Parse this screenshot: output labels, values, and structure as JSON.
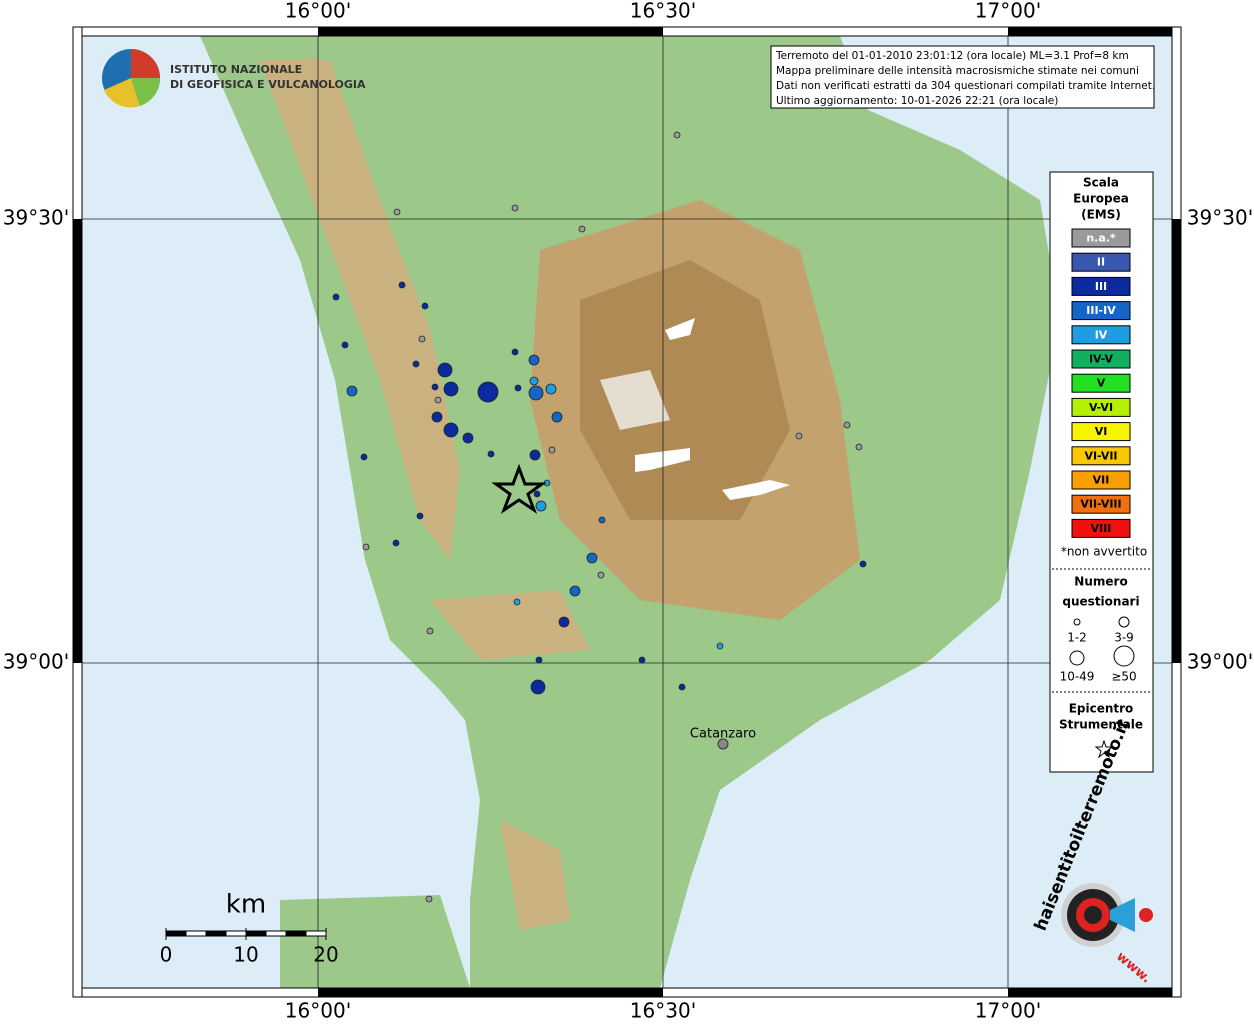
{
  "info": [
    "Terremoto del 01-01-2010 23:01:12 (ora locale) ML=3.1 Prof=8 km",
    "Mappa preliminare delle intensità macrosismiche stimate nei comuni",
    "Dati non verificati estratti da 304 questionari compilati tramite Internet.",
    "Ultimo aggiornamento: 10-01-2026 22:21 (ora locale)"
  ],
  "logo": [
    "ISTITUTO NAZIONALE",
    "DI GEOFISICA E VULCANOLOGIA"
  ],
  "graticule": {
    "lon": [
      {
        "value": 16,
        "label": "16°00'"
      },
      {
        "value": 16.5,
        "label": "16°30'"
      },
      {
        "value": 17,
        "label": "17°00'"
      }
    ],
    "lat": [
      {
        "value": 39.5,
        "label": "39°30'"
      },
      {
        "value": 39,
        "label": "39°00'"
      }
    ]
  },
  "legend": {
    "title": [
      "Scala",
      "Europea",
      "(EMS)"
    ],
    "classes": [
      {
        "label": "n.a.*",
        "color": "#9a9a9a"
      },
      {
        "label": "II",
        "color": "#3a57b0"
      },
      {
        "label": "III",
        "color": "#0b2a9e"
      },
      {
        "label": "III-IV",
        "color": "#1565c8"
      },
      {
        "label": "IV",
        "color": "#1e9ee0"
      },
      {
        "label": "IV-V",
        "color": "#10b060"
      },
      {
        "label": "V",
        "color": "#22e022"
      },
      {
        "label": "V-VI",
        "color": "#b4f000"
      },
      {
        "label": "VI",
        "color": "#f8f400"
      },
      {
        "label": "VI-VII",
        "color": "#f8c800"
      },
      {
        "label": "VII",
        "color": "#f8a000"
      },
      {
        "label": "VII-VIII",
        "color": "#f07010"
      },
      {
        "label": "VIII",
        "color": "#f01010"
      }
    ],
    "note": "*non avvertito",
    "count_title": [
      "Numero",
      "questionari"
    ],
    "counts": [
      "1-2",
      "3-9",
      "10-49",
      "≥50"
    ],
    "epicenter": [
      "Epicentro",
      "Strumentale"
    ]
  },
  "city": "Catanzaro",
  "scale": {
    "unit": "km",
    "ticks": [
      0,
      10,
      20
    ]
  },
  "brand": [
    "haisentitoilterremoto.it",
    "www."
  ]
}
